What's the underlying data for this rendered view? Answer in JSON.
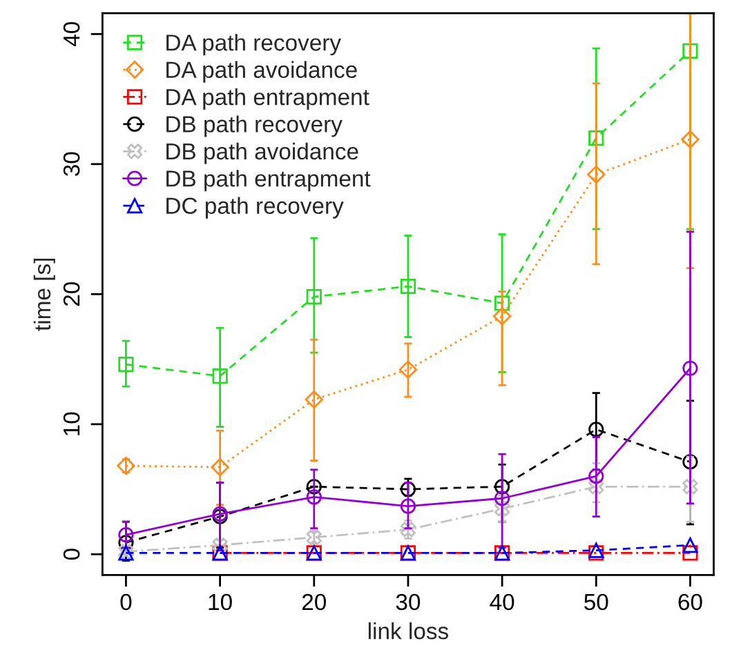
{
  "chart_data": {
    "type": "line",
    "xlabel": "link loss",
    "ylabel": "time [s]",
    "x": [
      0,
      10,
      20,
      30,
      40,
      50,
      60
    ],
    "xlim": [
      -2.5,
      62.5
    ],
    "xticks": [
      0,
      10,
      20,
      30,
      40,
      50,
      60
    ],
    "ylim": [
      -1.6,
      41.6
    ],
    "yticks": [
      0,
      10,
      20,
      30,
      40
    ],
    "grid": false,
    "legend": "top left",
    "series": [
      {
        "name": "DA path recovery",
        "color": "#22dd22",
        "marker": "square",
        "line_style": "dashed",
        "values": [
          14.6,
          13.7,
          19.8,
          20.6,
          19.3,
          32.0,
          38.7
        ],
        "errors": [
          [
            12.9,
            16.4
          ],
          [
            9.8,
            17.4
          ],
          [
            15.5,
            24.3
          ],
          [
            16.7,
            24.5
          ],
          [
            14.0,
            24.6
          ],
          [
            25.0,
            38.9
          ],
          [
            25.0,
            41.6
          ]
        ]
      },
      {
        "name": "DA path avoidance",
        "color": "#ff8c1a",
        "marker": "diamond",
        "line_style": "dotted",
        "values": [
          6.8,
          6.7,
          11.9,
          14.2,
          18.3,
          29.2,
          31.9
        ],
        "errors": [
          [
            6.3,
            7.3
          ],
          [
            3.8,
            9.5
          ],
          [
            7.2,
            16.5
          ],
          [
            12.1,
            16.2
          ],
          [
            13.0,
            20.2
          ],
          [
            22.3,
            36.2
          ],
          [
            22.0,
            41.6
          ]
        ]
      },
      {
        "name": "DA path entrapment",
        "color": "#ff0000",
        "marker": "square",
        "line_style": "dashdot",
        "values": [
          null,
          0.1,
          0.1,
          0.1,
          0.1,
          0.1,
          0.1
        ]
      },
      {
        "name": "DB path recovery",
        "color": "#000000",
        "marker": "circle",
        "line_style": "dashed",
        "values": [
          0.9,
          2.9,
          5.2,
          5.0,
          5.2,
          9.6,
          7.1
        ],
        "errors": [
          [
            -0.5,
            2.5
          ],
          [
            0.5,
            5.5
          ],
          null,
          [
            4.5,
            5.8
          ],
          [
            2.5,
            6.9
          ],
          [
            6.5,
            12.4
          ],
          [
            2.3,
            11.8
          ]
        ]
      },
      {
        "name": "DB path avoidance",
        "color": "#c0c0c0",
        "marker": "cross",
        "line_style": "dashdot",
        "values": [
          0.2,
          0.7,
          1.3,
          1.9,
          3.5,
          5.2,
          5.2
        ],
        "errors": [
          [
            0.0,
            0.4
          ],
          [
            0.3,
            1.1
          ],
          [
            0.8,
            1.8
          ],
          [
            1.2,
            2.6
          ],
          [
            2.5,
            4.5
          ],
          [
            4.0,
            7.0
          ],
          [
            2.5,
            7.5
          ]
        ]
      },
      {
        "name": "DB path entrapment",
        "color": "#9400d3",
        "marker": "circle",
        "line_style": "solid",
        "values": [
          1.5,
          3.1,
          4.4,
          3.7,
          4.3,
          6.0,
          14.3
        ],
        "errors": [
          [
            0.5,
            2.5
          ],
          [
            0.3,
            5.5
          ],
          [
            2.0,
            6.5
          ],
          [
            2.0,
            5.5
          ],
          [
            0.5,
            7.7
          ],
          [
            2.9,
            9.0
          ],
          [
            3.9,
            24.8
          ]
        ]
      },
      {
        "name": "DC path recovery",
        "color": "#0000ff",
        "marker": "triangle",
        "line_style": "dashed",
        "values": [
          0.1,
          0.1,
          0.1,
          0.1,
          0.1,
          0.3,
          0.7
        ]
      }
    ]
  }
}
